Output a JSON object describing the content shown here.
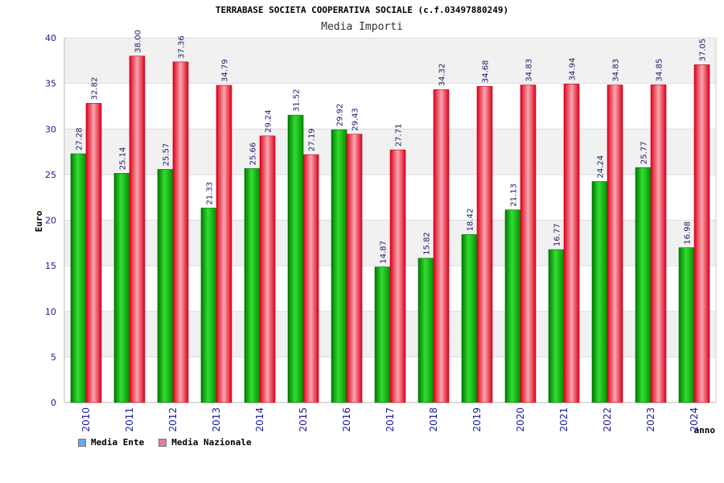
{
  "title": "TERRABASE SOCIETA COOPERATIVA SOCIALE (c.f.03497880249)",
  "subtitle": "Media Importi",
  "chart_data": {
    "type": "bar",
    "ylabel": "Euro",
    "xlabel": "anno",
    "ylim": [
      0,
      40
    ],
    "yticks": [
      0,
      5,
      10,
      15,
      20,
      25,
      30,
      35,
      40
    ],
    "grid": true,
    "legend_position": "bottom-left",
    "categories": [
      "2010",
      "2011",
      "2012",
      "2013",
      "2014",
      "2015",
      "2016",
      "2017",
      "2018",
      "2019",
      "2020",
      "2021",
      "2022",
      "2023",
      "2024"
    ],
    "series": [
      {
        "name": "Media Ente",
        "color": "#00b000",
        "legend_color": "#6aa7e8",
        "values": [
          27.28,
          25.14,
          25.57,
          21.33,
          25.66,
          31.52,
          29.92,
          14.87,
          15.82,
          18.42,
          21.13,
          16.77,
          24.24,
          25.77,
          16.98
        ],
        "labels": [
          "27.28",
          "25.14",
          "25.57",
          "21.33",
          "25.66",
          "31.52",
          "29.92",
          "14.87",
          "15.82",
          "18.42",
          "21.13",
          "16.77",
          "24.24",
          "25.77",
          "16.98"
        ]
      },
      {
        "name": "Media Nazionale",
        "color": "#e8202c",
        "legend_color": "#e07aa8",
        "values": [
          32.82,
          38.0,
          37.36,
          34.79,
          29.24,
          27.19,
          29.43,
          27.71,
          34.32,
          34.68,
          34.83,
          34.94,
          34.83,
          34.85,
          37.05
        ],
        "labels": [
          "32.82",
          "38.00",
          "37.36",
          "34.79",
          "29.24",
          "27.19",
          "29.43",
          "27.71",
          "34.32",
          "34.68",
          "34.83",
          "34.94",
          "34.83",
          "34.85",
          "37.05"
        ]
      }
    ]
  }
}
